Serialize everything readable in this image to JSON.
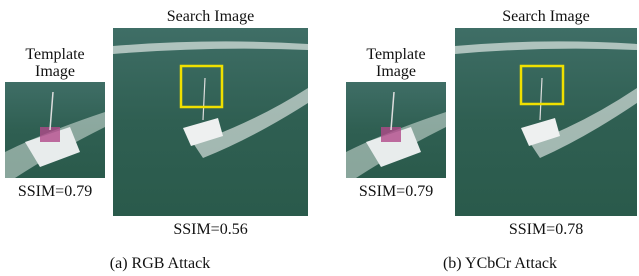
{
  "panels": [
    {
      "template_label": "Template Image",
      "search_label": "Search Image",
      "template_ssim": "SSIM=0.79",
      "search_ssim": "SSIM=0.56",
      "caption": "(a) RGB Attack"
    },
    {
      "template_label": "Template Image",
      "search_label": "Search Image",
      "template_ssim": "SSIM=0.79",
      "search_ssim": "SSIM=0.78",
      "caption": "(b) YCbCr Attack"
    }
  ]
}
